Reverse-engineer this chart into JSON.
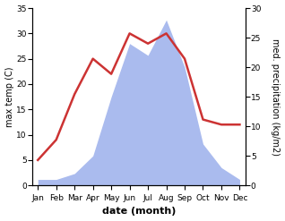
{
  "months": [
    "Jan",
    "Feb",
    "Mar",
    "Apr",
    "May",
    "Jun",
    "Jul",
    "Aug",
    "Sep",
    "Oct",
    "Nov",
    "Dec"
  ],
  "temperature": [
    5.0,
    9.0,
    18.0,
    25.0,
    22.0,
    30.0,
    28.0,
    30.0,
    25.0,
    13.0,
    12.0,
    12.0
  ],
  "precipitation": [
    1.0,
    1.0,
    2.0,
    5.0,
    15.0,
    24.0,
    22.0,
    28.0,
    20.0,
    7.0,
    3.0,
    1.0
  ],
  "temp_color": "#cc3333",
  "precip_color": "#aabbee",
  "temp_ylim": [
    0,
    35
  ],
  "precip_ylim": [
    0,
    30
  ],
  "temp_yticks": [
    0,
    5,
    10,
    15,
    20,
    25,
    30,
    35
  ],
  "precip_yticks": [
    0,
    5,
    10,
    15,
    20,
    25,
    30
  ],
  "ylabel_left": "max temp (C)",
  "ylabel_right": "med. precipitation (kg/m2)",
  "xlabel": "date (month)",
  "label_fontsize": 7,
  "tick_fontsize": 6.5,
  "xlabel_fontsize": 8,
  "xlabel_fontweight": "bold"
}
